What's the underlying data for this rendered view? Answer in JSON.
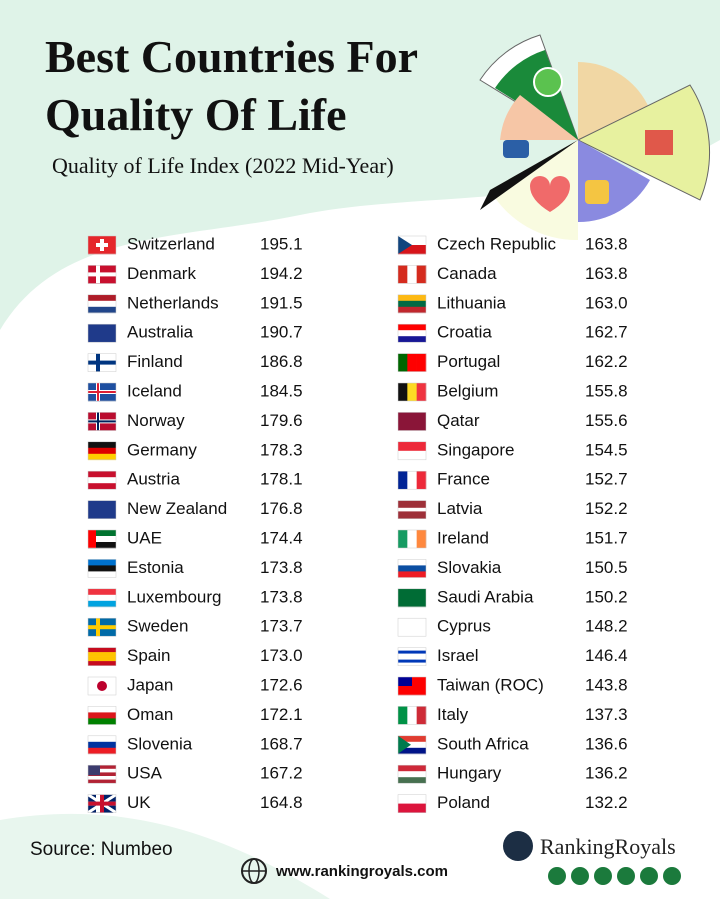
{
  "header": {
    "title_line1": "Best Countries For",
    "title_line2": "Quality Of Life",
    "subtitle": "Quality of Life Index (2022 Mid-Year)"
  },
  "columns": [
    {
      "rows": [
        {
          "country": "Switzerland",
          "value": "195.1"
        },
        {
          "country": "Denmark",
          "value": "194.2"
        },
        {
          "country": "Netherlands",
          "value": "191.5"
        },
        {
          "country": "Australia",
          "value": "190.7"
        },
        {
          "country": "Finland",
          "value": "186.8"
        },
        {
          "country": "Iceland",
          "value": "184.5"
        },
        {
          "country": "Norway",
          "value": "179.6"
        },
        {
          "country": "Germany",
          "value": "178.3"
        },
        {
          "country": "Austria",
          "value": "178.1"
        },
        {
          "country": "New Zealand",
          "value": "176.8"
        },
        {
          "country": "UAE",
          "value": "174.4"
        },
        {
          "country": "Estonia",
          "value": "173.8"
        },
        {
          "country": "Luxembourg",
          "value": "173.8"
        },
        {
          "country": "Sweden",
          "value": "173.7"
        },
        {
          "country": "Spain",
          "value": "173.0"
        },
        {
          "country": "Japan",
          "value": "172.6"
        },
        {
          "country": "Oman",
          "value": "172.1"
        },
        {
          "country": "Slovenia",
          "value": "168.7"
        },
        {
          "country": "USA",
          "value": "167.2"
        },
        {
          "country": "UK",
          "value": "164.8"
        }
      ]
    },
    {
      "rows": [
        {
          "country": "Czech Republic",
          "value": "163.8"
        },
        {
          "country": "Canada",
          "value": "163.8"
        },
        {
          "country": "Lithuania",
          "value": "163.0"
        },
        {
          "country": "Croatia",
          "value": "162.7"
        },
        {
          "country": "Portugal",
          "value": "162.2"
        },
        {
          "country": "Belgium",
          "value": "155.8"
        },
        {
          "country": "Qatar",
          "value": "155.6"
        },
        {
          "country": "Singapore",
          "value": "154.5"
        },
        {
          "country": "France",
          "value": "152.7"
        },
        {
          "country": "Latvia",
          "value": "152.2"
        },
        {
          "country": "Ireland",
          "value": "151.7"
        },
        {
          "country": "Slovakia",
          "value": "150.5"
        },
        {
          "country": "Saudi Arabia",
          "value": "150.2"
        },
        {
          "country": "Cyprus",
          "value": "148.2"
        },
        {
          "country": "Israel",
          "value": "146.4"
        },
        {
          "country": "Taiwan (ROC)",
          "value": "143.8"
        },
        {
          "country": "Italy",
          "value": "137.3"
        },
        {
          "country": "South Africa",
          "value": "136.6"
        },
        {
          "country": "Hungary",
          "value": "136.2"
        },
        {
          "country": "Poland",
          "value": "132.2"
        }
      ]
    }
  ],
  "footer": {
    "source": "Source: Numbeo",
    "website": "www.rankingroyals.com",
    "brand": "RankingRoyals"
  }
}
